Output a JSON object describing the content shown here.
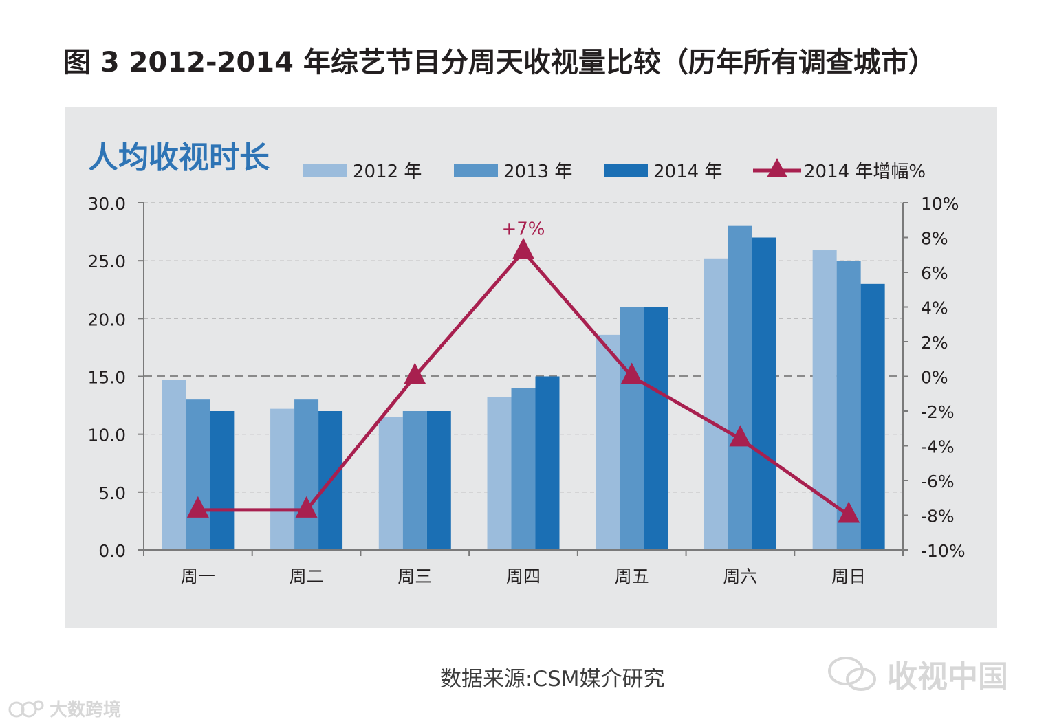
{
  "title": "图 3  2012-2014 年综艺节目分周天收视量比较（历年所有调查城市）",
  "source": "数据来源:CSM媒介研究",
  "watermarks": {
    "right": "收视中国",
    "left": "大数跨境"
  },
  "chart_data": {
    "type": "bar",
    "title": "人均收视时长",
    "categories": [
      "周一",
      "周二",
      "周三",
      "周四",
      "周五",
      "周六",
      "周日"
    ],
    "series": [
      {
        "name": "2012 年",
        "color": "#9bbcdc",
        "values": [
          14.7,
          12.2,
          11.5,
          13.2,
          18.6,
          25.2,
          25.9
        ]
      },
      {
        "name": "2013 年",
        "color": "#5a96c8",
        "values": [
          13.0,
          13.0,
          12.0,
          14.0,
          21.0,
          28.0,
          25.0
        ]
      },
      {
        "name": "2014 年",
        "color": "#1b6fb4",
        "values": [
          12.0,
          12.0,
          12.0,
          15.0,
          21.0,
          27.0,
          23.0
        ]
      }
    ],
    "line_series": {
      "name": "2014  年增幅%",
      "color": "#a8204f",
      "values": [
        -7.7,
        -7.7,
        0.0,
        7.2,
        0.0,
        -3.6,
        -8.0
      ],
      "annotation": {
        "index": 3,
        "text": "+7%"
      }
    },
    "y_left": {
      "range": [
        0,
        30
      ],
      "ticks": [
        "0.0",
        "5.0",
        "10.0",
        "15.0",
        "20.0",
        "25.0",
        "30.0"
      ]
    },
    "y_right": {
      "range": [
        -10,
        10
      ],
      "ticks": [
        "-10%",
        "-8%",
        "-6%",
        "-4%",
        "-2%",
        "0%",
        "2%",
        "4%",
        "6%",
        "8%",
        "10%"
      ]
    },
    "grid": true,
    "legend_position": "top"
  }
}
